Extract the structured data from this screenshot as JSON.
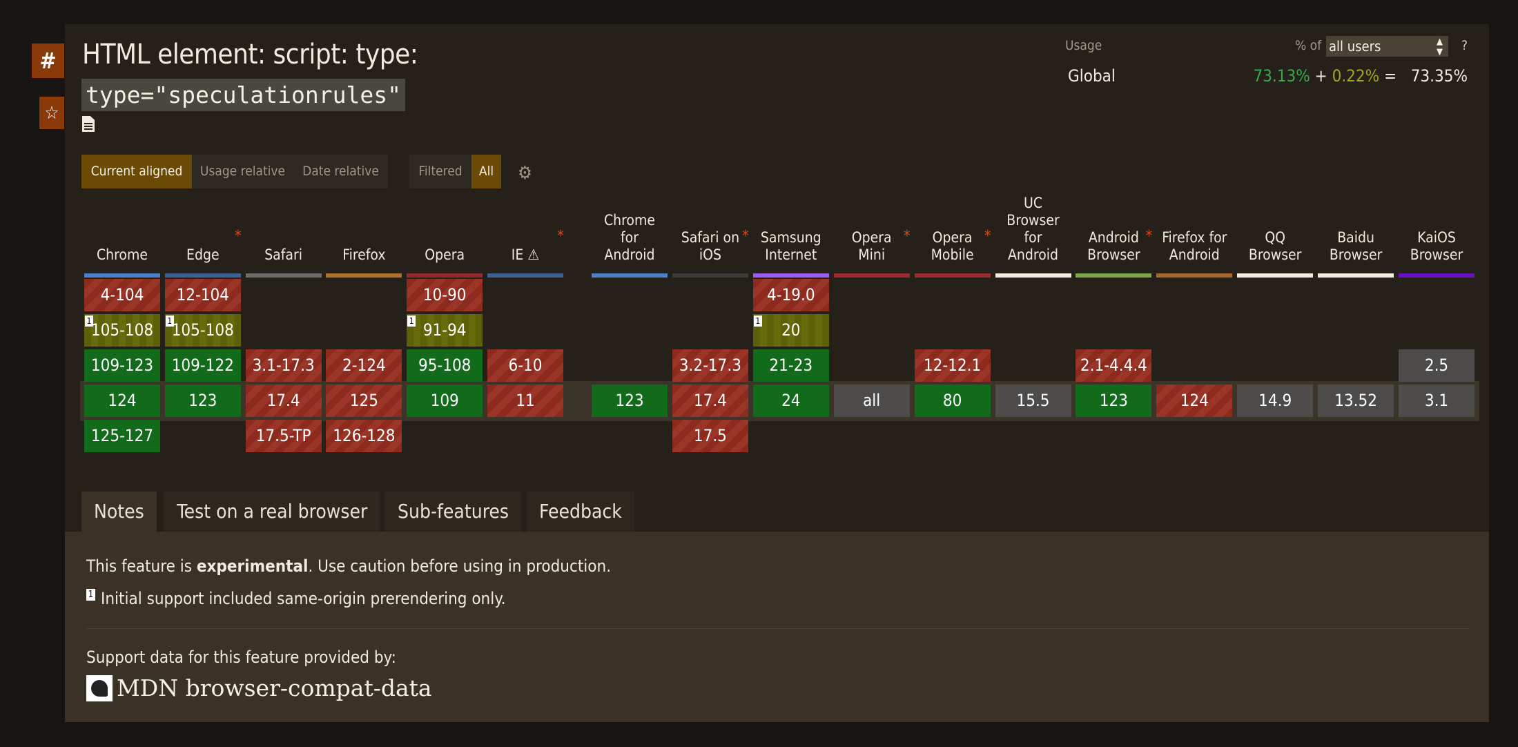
{
  "title": "HTML element: script: type:",
  "code": "type=\"speculationrules\"",
  "side": {
    "hash": "#",
    "star": "☆"
  },
  "view_buttons": {
    "current": "Current aligned",
    "usage": "Usage relative",
    "date": "Date relative",
    "filtered": "Filtered",
    "all": "All"
  },
  "usage": {
    "label": "Usage",
    "pct_of": "% of",
    "selected": "all users",
    "help": "?",
    "region": "Global",
    "supported": "73.13%",
    "plus": "+",
    "partial": "0.22%",
    "equals": "=",
    "total": "73.35%"
  },
  "browsers": [
    {
      "name": "Chrome",
      "color": "#4a7fc9",
      "ast": false,
      "cells": [
        {
          "v": "4-104",
          "s": "n"
        },
        {
          "v": "105-108",
          "s": "a",
          "note": "1"
        },
        {
          "v": "109-123",
          "s": "y"
        },
        {
          "v": "124",
          "s": "y"
        },
        {
          "v": "125-127",
          "s": "y"
        }
      ]
    },
    {
      "name": "Edge",
      "color": "#3c5f96",
      "ast": true,
      "cells": [
        {
          "v": "12-104",
          "s": "n"
        },
        {
          "v": "105-108",
          "s": "a",
          "note": "1"
        },
        {
          "v": "109-122",
          "s": "y"
        },
        {
          "v": "123",
          "s": "y"
        },
        null
      ]
    },
    {
      "name": "Safari",
      "color": "#6b6b6b",
      "ast": false,
      "cells": [
        null,
        null,
        {
          "v": "3.1-17.3",
          "s": "n"
        },
        {
          "v": "17.4",
          "s": "n"
        },
        {
          "v": "17.5-TP",
          "s": "n"
        }
      ]
    },
    {
      "name": "Firefox",
      "color": "#b0702a",
      "ast": false,
      "cells": [
        null,
        null,
        {
          "v": "2-124",
          "s": "n"
        },
        {
          "v": "125",
          "s": "n"
        },
        {
          "v": "126-128",
          "s": "n"
        }
      ]
    },
    {
      "name": "Opera",
      "color": "#902a2e",
      "ast": false,
      "cells": [
        {
          "v": "10-90",
          "s": "n"
        },
        {
          "v": "91-94",
          "s": "a",
          "note": "1"
        },
        {
          "v": "95-108",
          "s": "y"
        },
        {
          "v": "109",
          "s": "y"
        },
        null
      ]
    },
    {
      "name": "IE ⚠",
      "color": "#3c5f96",
      "ast": true,
      "cells": [
        null,
        null,
        {
          "v": "6-10",
          "s": "n"
        },
        {
          "v": "11",
          "s": "n"
        },
        null
      ]
    },
    {
      "name": "Chrome for Android",
      "color": "#4a7fc9",
      "ast": false,
      "cells": [
        null,
        null,
        null,
        {
          "v": "123",
          "s": "y"
        },
        null
      ]
    },
    {
      "name": "Safari on iOS",
      "color": "#3a3a3a",
      "ast": true,
      "cells": [
        null,
        null,
        {
          "v": "3.2-17.3",
          "s": "n"
        },
        {
          "v": "17.4",
          "s": "n"
        },
        {
          "v": "17.5",
          "s": "n"
        }
      ]
    },
    {
      "name": "Samsung Internet",
      "color": "#9a5cf5",
      "ast": false,
      "cells": [
        {
          "v": "4-19.0",
          "s": "n"
        },
        {
          "v": "20",
          "s": "a",
          "note": "1"
        },
        {
          "v": "21-23",
          "s": "y"
        },
        {
          "v": "24",
          "s": "y"
        },
        null
      ]
    },
    {
      "name": "Opera Mini",
      "color": "#9a2a2e",
      "ast": true,
      "cells": [
        null,
        null,
        null,
        {
          "v": "all",
          "s": "u"
        },
        null
      ]
    },
    {
      "name": "Opera Mobile",
      "color": "#9a2a2e",
      "ast": true,
      "cells": [
        null,
        null,
        {
          "v": "12-12.1",
          "s": "n"
        },
        {
          "v": "80",
          "s": "y"
        },
        null
      ]
    },
    {
      "name": "UC Browser for Android",
      "color": "#f2ecdc",
      "ast": false,
      "cells": [
        null,
        null,
        null,
        {
          "v": "15.5",
          "s": "u"
        },
        null
      ]
    },
    {
      "name": "Android Browser",
      "color": "#7ba542",
      "ast": true,
      "cells": [
        null,
        null,
        {
          "v": "2.1-4.4.4",
          "s": "n"
        },
        {
          "v": "123",
          "s": "y"
        },
        null
      ]
    },
    {
      "name": "Firefox for Android",
      "color": "#a8652a",
      "ast": false,
      "cells": [
        null,
        null,
        null,
        {
          "v": "124",
          "s": "n"
        },
        null
      ]
    },
    {
      "name": "QQ Browser",
      "color": "#f2ecdc",
      "ast": false,
      "cells": [
        null,
        null,
        null,
        {
          "v": "14.9",
          "s": "u"
        },
        null
      ]
    },
    {
      "name": "Baidu Browser",
      "color": "#f2ecdc",
      "ast": false,
      "cells": [
        null,
        null,
        null,
        {
          "v": "13.52",
          "s": "u"
        },
        null
      ]
    },
    {
      "name": "KaiOS Browser",
      "color": "#6a10c4",
      "ast": false,
      "cells": [
        null,
        null,
        {
          "v": "2.5",
          "s": "u"
        },
        {
          "v": "3.1",
          "s": "u"
        },
        null
      ]
    }
  ],
  "tabs": [
    "Notes",
    "Test on a real browser",
    "Sub-features",
    "Feedback"
  ],
  "notes": {
    "line1_pre": "This feature is ",
    "line1_bold": "experimental",
    "line1_post": ". Use caution before using in production.",
    "note1_num": "1",
    "note1_text": "Initial support included same-origin prerendering only.",
    "support_by": "Support data for this feature provided by:",
    "mdn": "MDN browser-compat-data"
  }
}
